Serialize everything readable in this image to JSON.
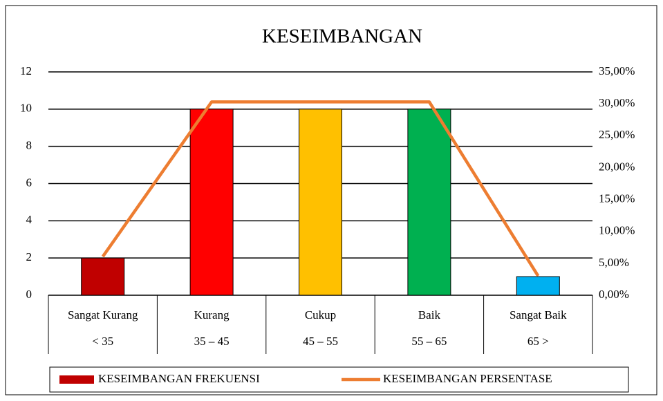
{
  "chart_data": {
    "type": "bar",
    "title": "KESEIMBANGAN",
    "categories": [
      [
        "Sangat Kurang",
        "< 35"
      ],
      [
        "Kurang",
        "35 – 45"
      ],
      [
        "Cukup",
        "45 – 55"
      ],
      [
        "Baik",
        "55 – 65"
      ],
      [
        "Sangat Baik",
        "65 >"
      ]
    ],
    "series": [
      {
        "name": "KESEIMBANGAN FREKUENSI",
        "type": "bar",
        "colors": [
          "#c00000",
          "#ff0000",
          "#ffc000",
          "#00b050",
          "#00b0f0"
        ],
        "values": [
          2,
          10,
          10,
          10,
          1
        ]
      },
      {
        "name": "KESEIMBANGAN PERSENTASE",
        "type": "line",
        "axis": "y2",
        "color": "#ed7d31",
        "values": [
          6.06,
          30.3,
          30.3,
          30.3,
          3.03
        ]
      }
    ],
    "ylim": [
      0,
      12
    ],
    "yticks": [
      0,
      2,
      4,
      6,
      8,
      10,
      12
    ],
    "y2lim": [
      0,
      35
    ],
    "y2ticks": [
      {
        "value": 0,
        "label": "0,00%"
      },
      {
        "value": 5,
        "label": "5,00%"
      },
      {
        "value": 10,
        "label": "10,00%"
      },
      {
        "value": 15,
        "label": "15,00%"
      },
      {
        "value": 20,
        "label": "20,00%"
      },
      {
        "value": 25,
        "label": "25,00%"
      },
      {
        "value": 30,
        "label": "30,00%"
      },
      {
        "value": 35,
        "label": "35,00%"
      }
    ],
    "grid": true,
    "legend": "bottom"
  }
}
